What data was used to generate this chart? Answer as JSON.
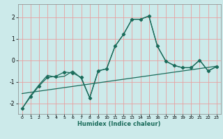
{
  "title": "",
  "xlabel": "Humidex (Indice chaleur)",
  "bg_color": "#cceaea",
  "line_color": "#1a6b5a",
  "grid_color": "#e8a0a0",
  "xlim": [
    -0.5,
    23.5
  ],
  "ylim": [
    -2.5,
    2.6
  ],
  "yticks": [
    -2,
    -1,
    0,
    1,
    2
  ],
  "xticks": [
    0,
    1,
    2,
    3,
    4,
    5,
    6,
    7,
    8,
    9,
    10,
    11,
    12,
    13,
    14,
    15,
    16,
    17,
    18,
    19,
    20,
    21,
    22,
    23
  ],
  "line1_x": [
    0,
    1,
    2,
    3,
    4,
    5,
    6,
    7,
    8,
    9,
    10,
    11,
    12,
    13,
    14,
    15,
    16,
    17,
    18,
    19,
    20,
    21,
    22,
    23
  ],
  "line1_y": [
    -2.25,
    -1.7,
    -1.2,
    -0.8,
    -0.75,
    -0.55,
    -0.6,
    -0.8,
    -1.75,
    -0.5,
    -0.4,
    0.65,
    1.2,
    1.9,
    1.9,
    2.05,
    0.65,
    -0.05,
    -0.25,
    -0.35,
    -0.35,
    0.0,
    -0.5,
    -0.3
  ],
  "line2_x": [
    0,
    1,
    2,
    3,
    4,
    5,
    6,
    7,
    8,
    9,
    10,
    11,
    12,
    13,
    14,
    15,
    16,
    17,
    18,
    19,
    20,
    21,
    22,
    23
  ],
  "line2_y": [
    -2.25,
    -1.65,
    -1.15,
    -0.7,
    -0.8,
    -0.75,
    -0.5,
    -0.85,
    -1.75,
    -0.5,
    -0.4,
    0.65,
    1.2,
    1.9,
    1.9,
    2.05,
    0.65,
    -0.05,
    -0.25,
    -0.35,
    -0.35,
    0.0,
    -0.5,
    -0.3
  ],
  "trend_x": [
    0,
    23
  ],
  "trend_y": [
    -1.55,
    -0.28
  ]
}
